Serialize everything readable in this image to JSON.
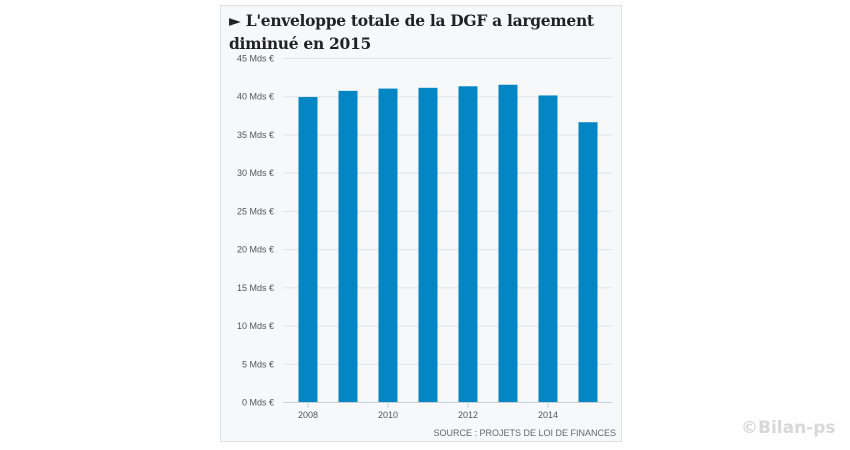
{
  "chart_data": {
    "type": "bar",
    "title": "► L'enveloppe totale de la DGF a largement diminué en 2015",
    "categories": [
      "2008",
      "2009",
      "2010",
      "2011",
      "2012",
      "2013",
      "2014",
      "2015"
    ],
    "values": [
      39.9,
      40.7,
      41.0,
      41.1,
      41.3,
      41.5,
      40.1,
      36.6
    ],
    "x_tick_labels": [
      "2008",
      "2010",
      "2012",
      "2014"
    ],
    "y_ticks": [
      0,
      5,
      10,
      15,
      20,
      25,
      30,
      35,
      40,
      45
    ],
    "y_tick_labels": [
      "0 Mds €",
      "5 Mds €",
      "10 Mds €",
      "15 Mds €",
      "20 Mds €",
      "25 Mds €",
      "30 Mds €",
      "35 Mds €",
      "40 Mds €",
      "45 Mds €"
    ],
    "ylim": [
      0,
      45
    ],
    "xlabel": "",
    "ylabel": "",
    "grid": true,
    "bar_color": "#0485c4",
    "source": "SOURCE : PROJETS DE LOI DE FINANCES"
  },
  "watermark": "©Bilan-ps"
}
